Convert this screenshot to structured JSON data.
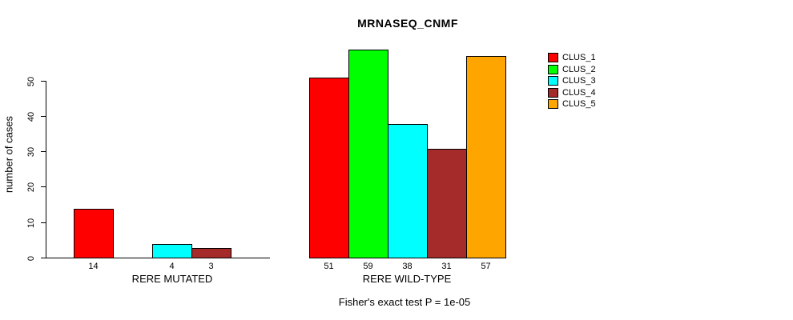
{
  "title": "MRNASEQ_CNMF",
  "ylabel": "number of cases",
  "footer": "Fisher's exact test P = 1e-05",
  "legend": {
    "items": [
      {
        "label": "CLUS_1",
        "color": "#FF0000"
      },
      {
        "label": "CLUS_2",
        "color": "#00FF00"
      },
      {
        "label": "CLUS_3",
        "color": "#00FFFF"
      },
      {
        "label": "CLUS_4",
        "color": "#A52A2A"
      },
      {
        "label": "CLUS_5",
        "color": "#FFA500"
      }
    ]
  },
  "chart_data": {
    "type": "bar",
    "title": "MRNASEQ_CNMF",
    "xlabel": "",
    "ylabel": "number of cases",
    "ylim": [
      0,
      59
    ],
    "yticks": [
      0,
      10,
      20,
      30,
      40,
      50
    ],
    "grid": false,
    "legend_position": "right",
    "clusters": [
      {
        "name": "CLUS_1",
        "color": "#FF0000"
      },
      {
        "name": "CLUS_2",
        "color": "#00FF00"
      },
      {
        "name": "CLUS_3",
        "color": "#00FFFF"
      },
      {
        "name": "CLUS_4",
        "color": "#A52A2A"
      },
      {
        "name": "CLUS_5",
        "color": "#FFA500"
      }
    ],
    "groups": [
      {
        "label": "RERE MUTATED",
        "values": [
          14,
          0,
          4,
          3,
          0
        ]
      },
      {
        "label": "RERE WILD-TYPE",
        "values": [
          51,
          59,
          38,
          31,
          57
        ]
      }
    ],
    "annotation": "Fisher's exact test P = 1e-05"
  }
}
